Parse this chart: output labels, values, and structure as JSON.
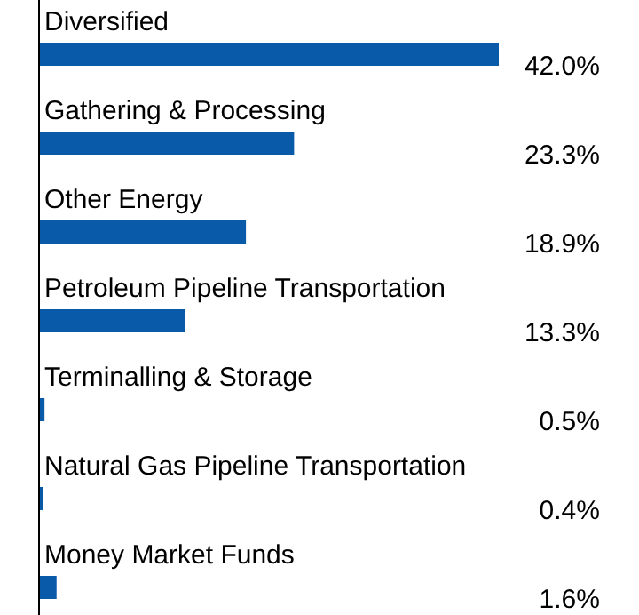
{
  "chart_data": {
    "type": "bar",
    "orientation": "horizontal",
    "categories": [
      "Diversified",
      "Gathering & Processing",
      "Other Energy",
      "Petroleum Pipeline Transportation",
      "Terminalling & Storage",
      "Natural Gas Pipeline Transportation",
      "Money Market Funds"
    ],
    "values": [
      42.0,
      23.3,
      18.9,
      13.3,
      0.5,
      0.4,
      1.6
    ],
    "value_labels": [
      "42.0%",
      "23.3%",
      "18.9%",
      "13.3%",
      "0.5%",
      "0.4%",
      "1.6%"
    ],
    "color": "#0a5aaa"
  }
}
